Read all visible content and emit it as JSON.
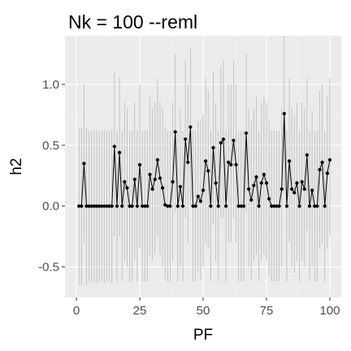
{
  "chart_data": {
    "type": "scatter",
    "title": "Nk = 100 --reml",
    "xlabel": "PF",
    "ylabel": "h2",
    "xlim": [
      -4.5,
      104.5
    ],
    "ylim": [
      -0.75,
      1.4
    ],
    "x_ticks": [
      0,
      25,
      50,
      75,
      100
    ],
    "x_tick_labels": [
      "0",
      "25",
      "50",
      "75",
      "100"
    ],
    "y_ticks": [
      -0.5,
      0.0,
      0.5,
      1.0
    ],
    "y_tick_labels": [
      "-0.5",
      "0.0",
      "0.5",
      "1.0"
    ],
    "grid": true,
    "series": [
      {
        "x": [
          1,
          2,
          3,
          4,
          5,
          6,
          7,
          8,
          9,
          10,
          11,
          12,
          13,
          14,
          15,
          16,
          17,
          18,
          19,
          20,
          21,
          22,
          23,
          24,
          25,
          26,
          27,
          28,
          29,
          30,
          31,
          32,
          33,
          34,
          35,
          36,
          37,
          38,
          39,
          40,
          41,
          42,
          43,
          44,
          45,
          46,
          47,
          48,
          49,
          50,
          51,
          52,
          53,
          54,
          55,
          56,
          57,
          58,
          59,
          60,
          61,
          62,
          63,
          64,
          65,
          66,
          67,
          68,
          69,
          70,
          71,
          72,
          73,
          74,
          75,
          76,
          77,
          78,
          79,
          80,
          81,
          82,
          83,
          84,
          85,
          86,
          87,
          88,
          89,
          90,
          91,
          92,
          93,
          94,
          95,
          96,
          97,
          98,
          99,
          100
        ],
        "y": [
          0.0,
          0.0,
          0.35,
          0.0,
          0.0,
          0.0,
          0.0,
          0.0,
          0.0,
          0.0,
          0.0,
          0.0,
          0.0,
          0.0,
          0.49,
          0.0,
          0.44,
          0.0,
          0.2,
          0.15,
          0.0,
          0.0,
          0.22,
          0.0,
          0.34,
          0.0,
          0.0,
          0.0,
          0.26,
          0.14,
          0.22,
          0.38,
          0.23,
          0.15,
          0.01,
          0.0,
          0.0,
          0.2,
          0.61,
          0.0,
          0.16,
          0.0,
          0.55,
          0.36,
          0.65,
          0.0,
          0.0,
          0.08,
          0.04,
          0.13,
          0.37,
          0.29,
          0.0,
          0.48,
          0.19,
          0.0,
          0.52,
          0.55,
          0.0,
          0.36,
          0.34,
          0.54,
          0.34,
          0.0,
          0.0,
          0.0,
          0.6,
          0.14,
          0.05,
          0.17,
          0.24,
          0.0,
          0.19,
          0.26,
          0.19,
          0.06,
          0.0,
          0.0,
          0.0,
          0.0,
          0.14,
          0.76,
          0.0,
          0.37,
          0.14,
          0.11,
          0.19,
          0.0,
          0.2,
          0.14,
          0.42,
          0.0,
          0.13,
          0.0,
          0.0,
          0.3,
          0.36,
          0.0,
          0.27,
          0.38
        ],
        "lower": [
          -0.65,
          -0.65,
          -0.3,
          -0.65,
          -0.62,
          -0.62,
          -0.63,
          -0.63,
          -0.62,
          -0.62,
          -0.63,
          -0.62,
          -0.62,
          -0.63,
          -0.25,
          -0.62,
          -0.25,
          -0.62,
          -0.45,
          -0.5,
          -0.62,
          -0.62,
          -0.45,
          -0.62,
          -0.35,
          -0.62,
          -0.62,
          -0.62,
          -0.4,
          -0.45,
          -0.4,
          -0.25,
          -0.4,
          -0.5,
          -0.6,
          -0.62,
          -0.62,
          -0.45,
          -0.05,
          -0.62,
          -0.5,
          -0.62,
          -0.1,
          -0.3,
          0.0,
          -0.62,
          -0.62,
          -0.55,
          -0.6,
          -0.5,
          -0.3,
          -0.35,
          -0.62,
          -0.15,
          -0.45,
          -0.62,
          -0.1,
          -0.1,
          -0.62,
          -0.3,
          -0.3,
          -0.1,
          -0.3,
          -0.62,
          -0.62,
          -0.62,
          -0.05,
          -0.5,
          -0.6,
          -0.45,
          -0.4,
          -0.62,
          -0.45,
          -0.4,
          -0.45,
          -0.58,
          -0.62,
          -0.62,
          -0.62,
          -0.62,
          -0.5,
          0.1,
          -0.62,
          -0.3,
          -0.5,
          -0.55,
          -0.45,
          -0.62,
          -0.45,
          -0.5,
          -0.2,
          -0.62,
          -0.5,
          -0.62,
          -0.62,
          -0.35,
          -0.3,
          -0.62,
          -0.35,
          -0.25
        ],
        "upper": [
          0.64,
          0.64,
          1.0,
          0.64,
          0.62,
          0.62,
          0.63,
          0.63,
          0.62,
          0.62,
          0.63,
          0.62,
          0.62,
          0.63,
          1.1,
          0.62,
          1.05,
          0.62,
          0.85,
          0.8,
          0.62,
          0.62,
          0.85,
          0.62,
          1.0,
          0.62,
          0.62,
          0.62,
          0.9,
          0.8,
          0.85,
          1.05,
          0.85,
          0.8,
          0.65,
          0.62,
          0.62,
          0.85,
          1.25,
          0.62,
          0.8,
          0.62,
          1.2,
          1.0,
          1.3,
          0.62,
          0.62,
          0.7,
          0.7,
          0.75,
          1.05,
          0.95,
          0.62,
          1.1,
          0.85,
          0.62,
          1.15,
          1.2,
          0.62,
          1.0,
          1.0,
          1.2,
          1.0,
          0.62,
          0.62,
          0.62,
          1.25,
          0.8,
          0.7,
          0.8,
          0.9,
          0.62,
          0.85,
          0.9,
          0.85,
          0.7,
          0.62,
          0.62,
          0.62,
          0.62,
          0.8,
          1.4,
          0.62,
          1.05,
          0.8,
          0.75,
          0.85,
          0.62,
          0.85,
          0.8,
          1.05,
          0.62,
          0.78,
          0.62,
          0.62,
          0.95,
          1.0,
          0.62,
          0.9,
          1.05
        ]
      }
    ],
    "colors": {
      "panel": "#ebebeb",
      "grid_major": "#ffffff",
      "grid_minor": "#f2f2f2",
      "point": "#000000",
      "line": "#000000",
      "error_bar": "#bfbfbf",
      "tick_label": "#4d4d4d",
      "tick_mark": "#333333"
    }
  }
}
